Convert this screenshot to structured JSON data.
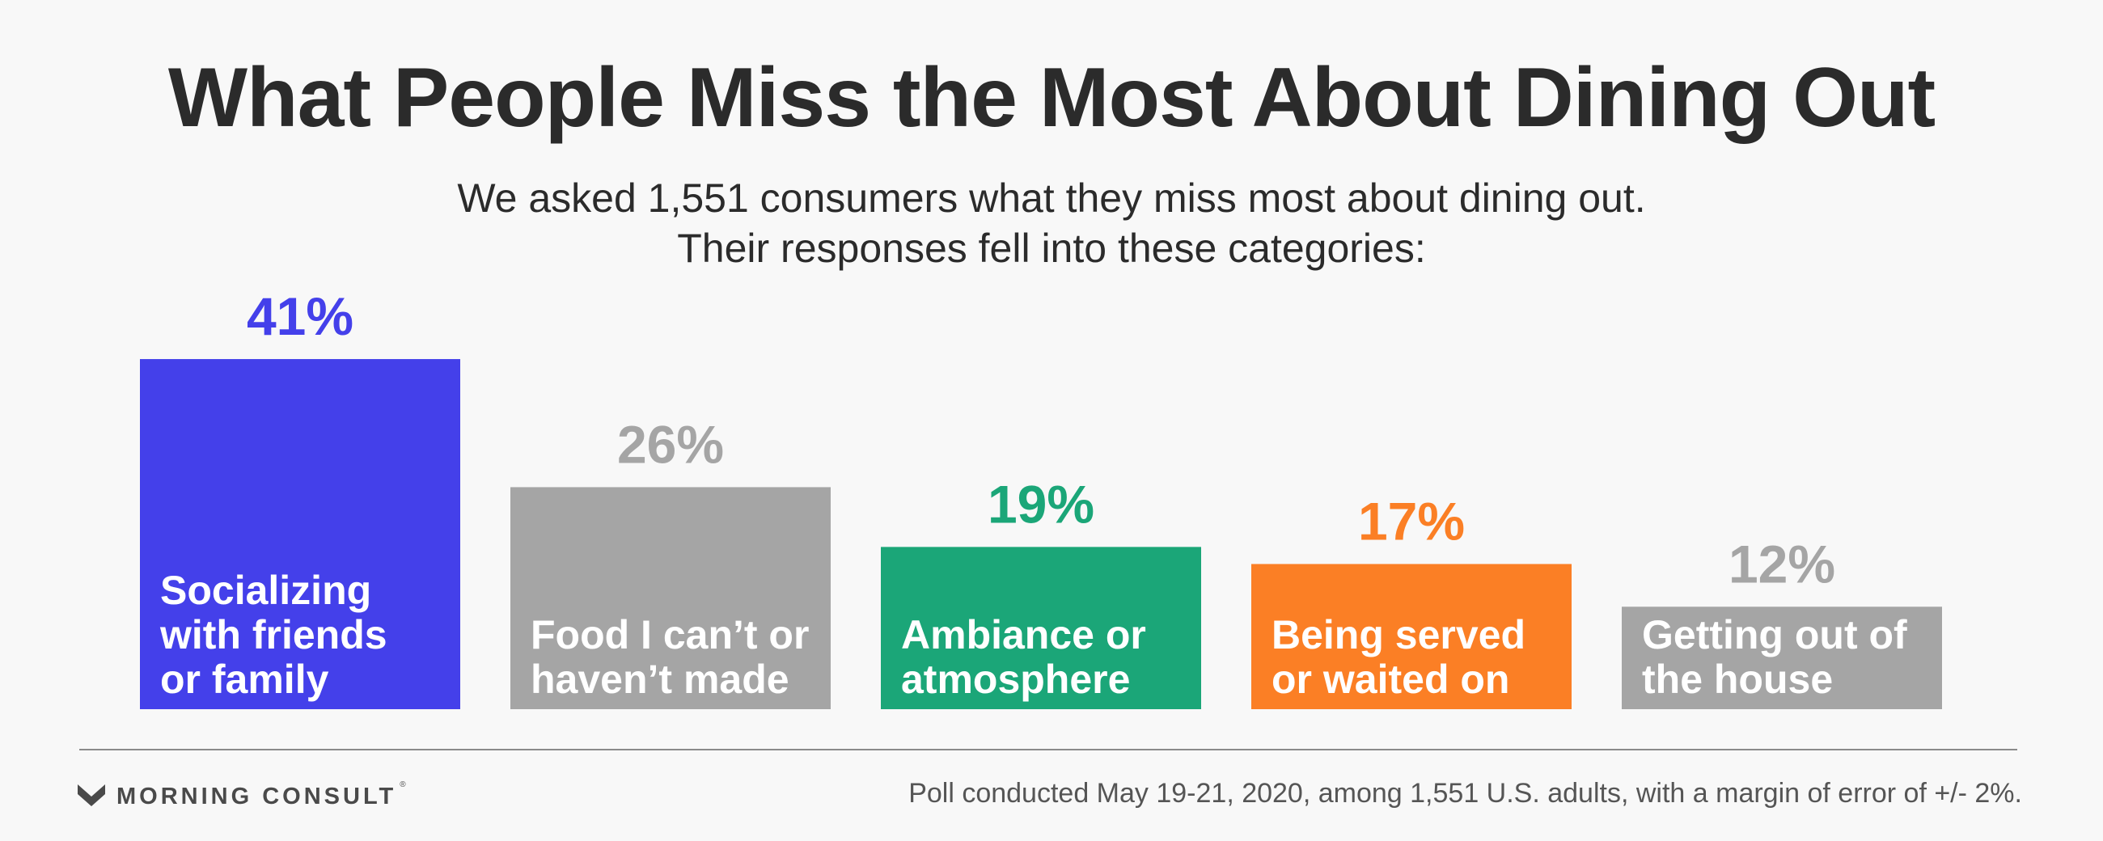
{
  "title": "What People Miss the Most About Dining Out",
  "subtitle": {
    "line1": "We asked 1,551 consumers what they miss most about dining out.",
    "line2": "Their responses fell into these categories:"
  },
  "chart_data": {
    "type": "bar",
    "categories": [
      [
        "Socializing",
        "with friends",
        "or family"
      ],
      [
        "Food I can’t or",
        "haven’t made"
      ],
      [
        "Ambiance or",
        "atmosphere"
      ],
      [
        "Being served",
        "or waited on"
      ],
      [
        "Getting out of",
        "the house"
      ]
    ],
    "values": [
      41,
      26,
      19,
      17,
      12
    ],
    "value_labels": [
      "41%",
      "26%",
      "19%",
      "17%",
      "12%"
    ],
    "colors": [
      "#4440ea",
      "#a5a5a5",
      "#1ba678",
      "#fb7f25",
      "#a5a5a5"
    ],
    "label_colors": [
      "#4440ea",
      "#a5a5a5",
      "#1ba678",
      "#fb7f25",
      "#a5a5a5"
    ],
    "unit": "%",
    "grid": false,
    "legend": "none"
  },
  "footer": {
    "brand": "MORNING CONSULT",
    "trademark": "®",
    "logo_icon": "morning-consult-chevron-icon",
    "note": "Poll conducted May 19-21, 2020, among 1,551 U.S. adults, with a margin of error of +/- 2%."
  }
}
